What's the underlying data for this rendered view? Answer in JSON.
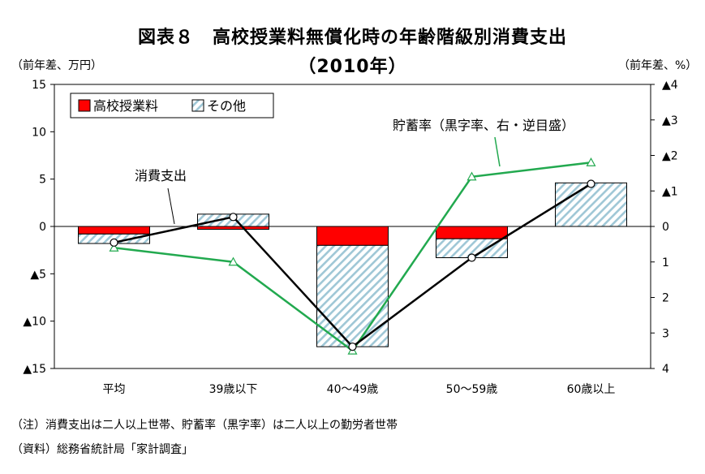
{
  "title": "図表８　高校授業料無償化時の年齢階級別消費支出",
  "subtitle": "（2010年）",
  "left_unit": "（前年差、万円）",
  "right_unit": "（前年差、%）",
  "notes": [
    "（注）消費支出は二人以上世帯、貯蓄率（黒字率）は二人以上の勤労者世帯",
    "（資料）総務省統計局「家計調査」"
  ],
  "colors": {
    "tuition": "#ff0000",
    "other_stripe": "#9fc7d6",
    "consumption": "#000000",
    "savings": "#22a94f"
  },
  "chart_data": {
    "type": "bar",
    "categories": [
      "平均",
      "39歳以下",
      "40～49歳",
      "50～59歳",
      "60歳以上"
    ],
    "left_axis": {
      "ylim": [
        -15,
        15
      ],
      "ticks": [
        15,
        10,
        5,
        0,
        -5,
        -10,
        -15
      ],
      "tick_labels": [
        "15",
        "10",
        "5",
        "0",
        "▲5",
        "▲10",
        "▲15"
      ]
    },
    "right_axis": {
      "ylim": [
        4,
        -4
      ],
      "inverted": true,
      "ticks": [
        -4,
        -3,
        -2,
        -1,
        0,
        1,
        2,
        3,
        4
      ],
      "tick_labels": [
        "▲4",
        "▲3",
        "▲2",
        "▲1",
        "0",
        "1",
        "2",
        "3",
        "4"
      ]
    },
    "stack_series": [
      {
        "name": "高校授業料",
        "values": [
          -0.8,
          -0.3,
          -2.0,
          -1.3,
          0.0
        ]
      },
      {
        "name": "その他",
        "values": [
          -1.0,
          1.3,
          -10.7,
          -2.0,
          4.6
        ]
      }
    ],
    "line_series": [
      {
        "name": "消費支出",
        "axis": "left",
        "values": [
          -1.7,
          1.0,
          -12.7,
          -3.3,
          4.5
        ]
      },
      {
        "name": "貯蓄率（黒字率、右・逆目盛）",
        "axis": "right",
        "values": [
          0.6,
          1.0,
          3.5,
          -1.4,
          -1.8
        ]
      }
    ],
    "annotations": [
      {
        "text": "消費支出"
      },
      {
        "text": "貯蓄率（黒字率、右・逆目盛）"
      }
    ],
    "legend": {
      "placement": "top-left",
      "entries": [
        "高校授業料",
        "その他"
      ]
    },
    "grid": false
  }
}
